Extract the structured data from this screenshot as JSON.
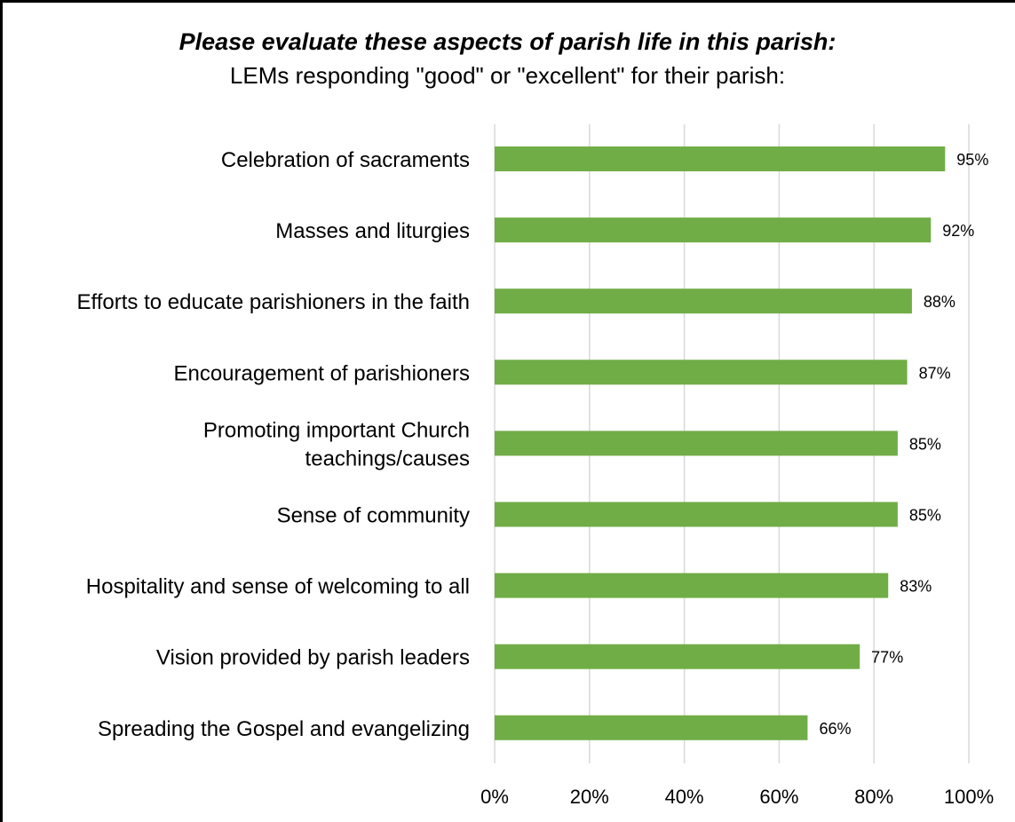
{
  "chart_data": {
    "type": "bar",
    "orientation": "horizontal",
    "title": "Please evaluate these aspects of parish life in this parish:",
    "subtitle": "LEMs responding \"good\" or \"excellent\" for their parish:",
    "categories": [
      [
        "Celebration of sacraments"
      ],
      [
        "Masses and liturgies"
      ],
      [
        "Efforts to educate parishioners in the faith"
      ],
      [
        "Encouragement of parishioners"
      ],
      [
        "Promoting important Church",
        "teachings/causes"
      ],
      [
        "Sense of community"
      ],
      [
        "Hospitality and sense of welcoming to all"
      ],
      [
        "Vision provided by parish leaders"
      ],
      [
        "Spreading the Gospel and evangelizing"
      ]
    ],
    "values": [
      95,
      92,
      88,
      87,
      85,
      85,
      83,
      77,
      66
    ],
    "data_labels": [
      "95%",
      "92%",
      "88%",
      "87%",
      "85%",
      "85%",
      "83%",
      "77%",
      "66%"
    ],
    "xlim": [
      0,
      100
    ],
    "ticks": [
      0,
      20,
      40,
      60,
      80,
      100
    ],
    "tick_labels": [
      "0%",
      "20%",
      "40%",
      "60%",
      "80%",
      "100%"
    ],
    "grid": "vertical",
    "legend": "none",
    "bar_color": "#70ad47",
    "grid_color": "#d9d9d9"
  }
}
